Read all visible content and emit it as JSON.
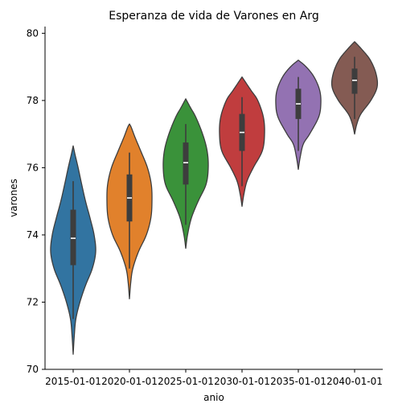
{
  "chart_data": {
    "type": "violin",
    "title": "Esperanza de vida de Varones en Arg",
    "xlabel": "anio",
    "ylabel": "varones",
    "ylim": [
      70,
      80.2
    ],
    "yticks": [
      70,
      72,
      74,
      76,
      78,
      80
    ],
    "grid": false,
    "categories": [
      "2015-01-01",
      "2020-01-01",
      "2025-01-01",
      "2030-01-01",
      "2035-01-01",
      "2040-01-01"
    ],
    "colors": [
      "#3274a1",
      "#e1812c",
      "#3a923a",
      "#c03d3e",
      "#9372b2",
      "#845b53"
    ],
    "violins": [
      {
        "min": 70.45,
        "whisker_low": 71.5,
        "q1": 73.1,
        "median": 73.9,
        "q3": 74.75,
        "whisker_high": 75.6,
        "max": 76.65,
        "profile": [
          [
            70.45,
            0.0
          ],
          [
            71.0,
            0.05
          ],
          [
            71.5,
            0.12
          ],
          [
            72.0,
            0.3
          ],
          [
            72.5,
            0.55
          ],
          [
            73.0,
            0.85
          ],
          [
            73.5,
            1.0
          ],
          [
            74.0,
            0.93
          ],
          [
            74.5,
            0.75
          ],
          [
            75.0,
            0.55
          ],
          [
            75.5,
            0.38
          ],
          [
            76.0,
            0.22
          ],
          [
            76.4,
            0.08
          ],
          [
            76.65,
            0.0
          ]
        ]
      },
      {
        "min": 72.1,
        "whisker_low": 73.0,
        "q1": 74.4,
        "median": 75.1,
        "q3": 75.8,
        "whisker_high": 76.45,
        "max": 77.3,
        "profile": [
          [
            72.1,
            0.0
          ],
          [
            72.6,
            0.06
          ],
          [
            73.0,
            0.15
          ],
          [
            73.5,
            0.4
          ],
          [
            74.0,
            0.75
          ],
          [
            74.5,
            0.95
          ],
          [
            75.0,
            1.0
          ],
          [
            75.5,
            0.97
          ],
          [
            76.0,
            0.8
          ],
          [
            76.5,
            0.5
          ],
          [
            76.9,
            0.25
          ],
          [
            77.2,
            0.08
          ],
          [
            77.3,
            0.0
          ]
        ]
      },
      {
        "min": 73.6,
        "whisker_low": 74.3,
        "q1": 75.5,
        "median": 76.15,
        "q3": 76.75,
        "whisker_high": 77.3,
        "max": 78.05,
        "profile": [
          [
            73.6,
            0.0
          ],
          [
            74.0,
            0.08
          ],
          [
            74.5,
            0.25
          ],
          [
            75.0,
            0.55
          ],
          [
            75.5,
            0.9
          ],
          [
            76.0,
            1.0
          ],
          [
            76.5,
            0.95
          ],
          [
            77.0,
            0.75
          ],
          [
            77.5,
            0.45
          ],
          [
            77.8,
            0.2
          ],
          [
            78.05,
            0.0
          ]
        ]
      },
      {
        "min": 74.85,
        "whisker_low": 75.45,
        "q1": 76.5,
        "median": 77.05,
        "q3": 77.6,
        "whisker_high": 78.1,
        "max": 78.7,
        "profile": [
          [
            74.85,
            0.0
          ],
          [
            75.2,
            0.08
          ],
          [
            75.6,
            0.22
          ],
          [
            76.0,
            0.5
          ],
          [
            76.5,
            0.9
          ],
          [
            77.0,
            1.0
          ],
          [
            77.5,
            0.95
          ],
          [
            78.0,
            0.7
          ],
          [
            78.3,
            0.4
          ],
          [
            78.55,
            0.15
          ],
          [
            78.7,
            0.0
          ]
        ]
      },
      {
        "min": 75.95,
        "whisker_low": 76.5,
        "q1": 77.45,
        "median": 77.9,
        "q3": 78.35,
        "whisker_high": 78.7,
        "max": 79.2,
        "profile": [
          [
            75.95,
            0.0
          ],
          [
            76.3,
            0.08
          ],
          [
            76.7,
            0.22
          ],
          [
            77.0,
            0.5
          ],
          [
            77.5,
            0.9
          ],
          [
            77.9,
            1.0
          ],
          [
            78.3,
            0.95
          ],
          [
            78.7,
            0.7
          ],
          [
            79.0,
            0.35
          ],
          [
            79.2,
            0.0
          ]
        ]
      },
      {
        "min": 77.0,
        "whisker_low": 77.45,
        "q1": 78.2,
        "median": 78.6,
        "q3": 78.95,
        "whisker_high": 79.3,
        "max": 79.75,
        "profile": [
          [
            77.0,
            0.0
          ],
          [
            77.3,
            0.1
          ],
          [
            77.6,
            0.28
          ],
          [
            78.0,
            0.72
          ],
          [
            78.4,
            1.0
          ],
          [
            78.8,
            0.95
          ],
          [
            79.2,
            0.7
          ],
          [
            79.5,
            0.35
          ],
          [
            79.75,
            0.0
          ]
        ]
      }
    ]
  }
}
